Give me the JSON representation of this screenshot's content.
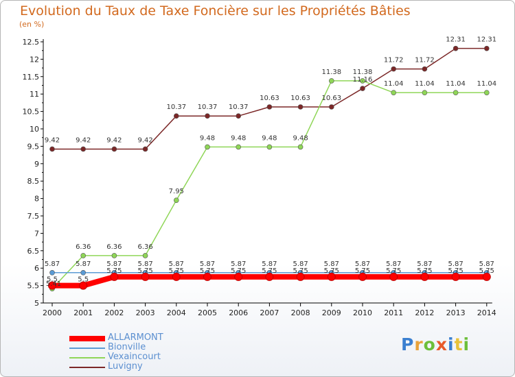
{
  "title": "Evolution du Taux de Taxe Foncière sur les Propriétés Bâties",
  "subtitle": "(en %)",
  "logo": {
    "text": "Proxiti",
    "letter_colors": [
      "#3a7fd0",
      "#e8a23a",
      "#6cbf3a",
      "#e85a2a",
      "#3a7fd0",
      "#e8c23a",
      "#6cbf3a"
    ]
  },
  "chart_data": {
    "type": "line",
    "title": "Evolution du Taux de Taxe Foncière sur les Propriétés Bâties",
    "ylabel": "(en %)",
    "xlabel": "",
    "x": [
      "2000",
      "2001",
      "2002",
      "2003",
      "2004",
      "2005",
      "2006",
      "2007",
      "2008",
      "2009",
      "2010",
      "2011",
      "2012",
      "2013",
      "2014"
    ],
    "ylim": [
      5,
      12.5
    ],
    "yticks": [
      "5",
      "5.5",
      "6",
      "6.5",
      "7",
      "7.5",
      "8",
      "8.5",
      "9",
      "9.5",
      "10",
      "10.5",
      "11",
      "11.5",
      "12",
      "12.5"
    ],
    "grid": false,
    "legend_position": "bottom-left",
    "series": [
      {
        "name": "ALLARMONT",
        "color": "#ff0000",
        "values": [
          5.5,
          5.5,
          5.75,
          5.75,
          5.75,
          5.75,
          5.75,
          5.75,
          5.75,
          5.75,
          5.75,
          5.75,
          5.75,
          5.75,
          5.75
        ],
        "labels": [
          "5.5",
          "5.5",
          "5.75",
          "5.75",
          "5.75",
          "5.75",
          "5.75",
          "5.75",
          "5.75",
          "5.75",
          "5.75",
          "5.75",
          "5.75",
          "5.75",
          "5.75"
        ]
      },
      {
        "name": "Bionville",
        "color": "#5b9bd5",
        "values": [
          5.87,
          5.87,
          5.87,
          5.87,
          5.87,
          5.87,
          5.87,
          5.87,
          5.87,
          5.87,
          5.87,
          5.87,
          5.87,
          5.87,
          5.87
        ],
        "labels": [
          "5.87",
          "5.87",
          "5.87",
          "5.87",
          "5.87",
          "5.87",
          "5.87",
          "5.87",
          "5.87",
          "5.87",
          "5.87",
          "5.87",
          "5.87",
          "5.87",
          "5.87"
        ]
      },
      {
        "name": "Vexaincourt",
        "color": "#8fd657",
        "values": [
          5.41,
          6.36,
          6.36,
          6.36,
          7.95,
          9.48,
          9.48,
          9.48,
          9.48,
          11.38,
          11.38,
          11.04,
          11.04,
          11.04,
          11.04
        ],
        "labels": [
          "5.41",
          "6.36",
          "6.36",
          "6.36",
          "7.95",
          "9.48",
          "9.48",
          "9.48",
          "9.48",
          "11.38",
          "11.38",
          "11.04",
          "11.04",
          "11.04",
          "11.04"
        ]
      },
      {
        "name": "Luvigny",
        "color": "#7b2727",
        "values": [
          9.42,
          9.42,
          9.42,
          9.42,
          10.37,
          10.37,
          10.37,
          10.63,
          10.63,
          10.63,
          11.16,
          11.72,
          11.72,
          12.31,
          12.31
        ],
        "labels": [
          "9.42",
          "9.42",
          "9.42",
          "9.42",
          "10.37",
          "10.37",
          "10.37",
          "10.63",
          "10.63",
          "10.63",
          "11.16",
          "11.72",
          "11.72",
          "12.31",
          "12.31"
        ]
      }
    ]
  }
}
